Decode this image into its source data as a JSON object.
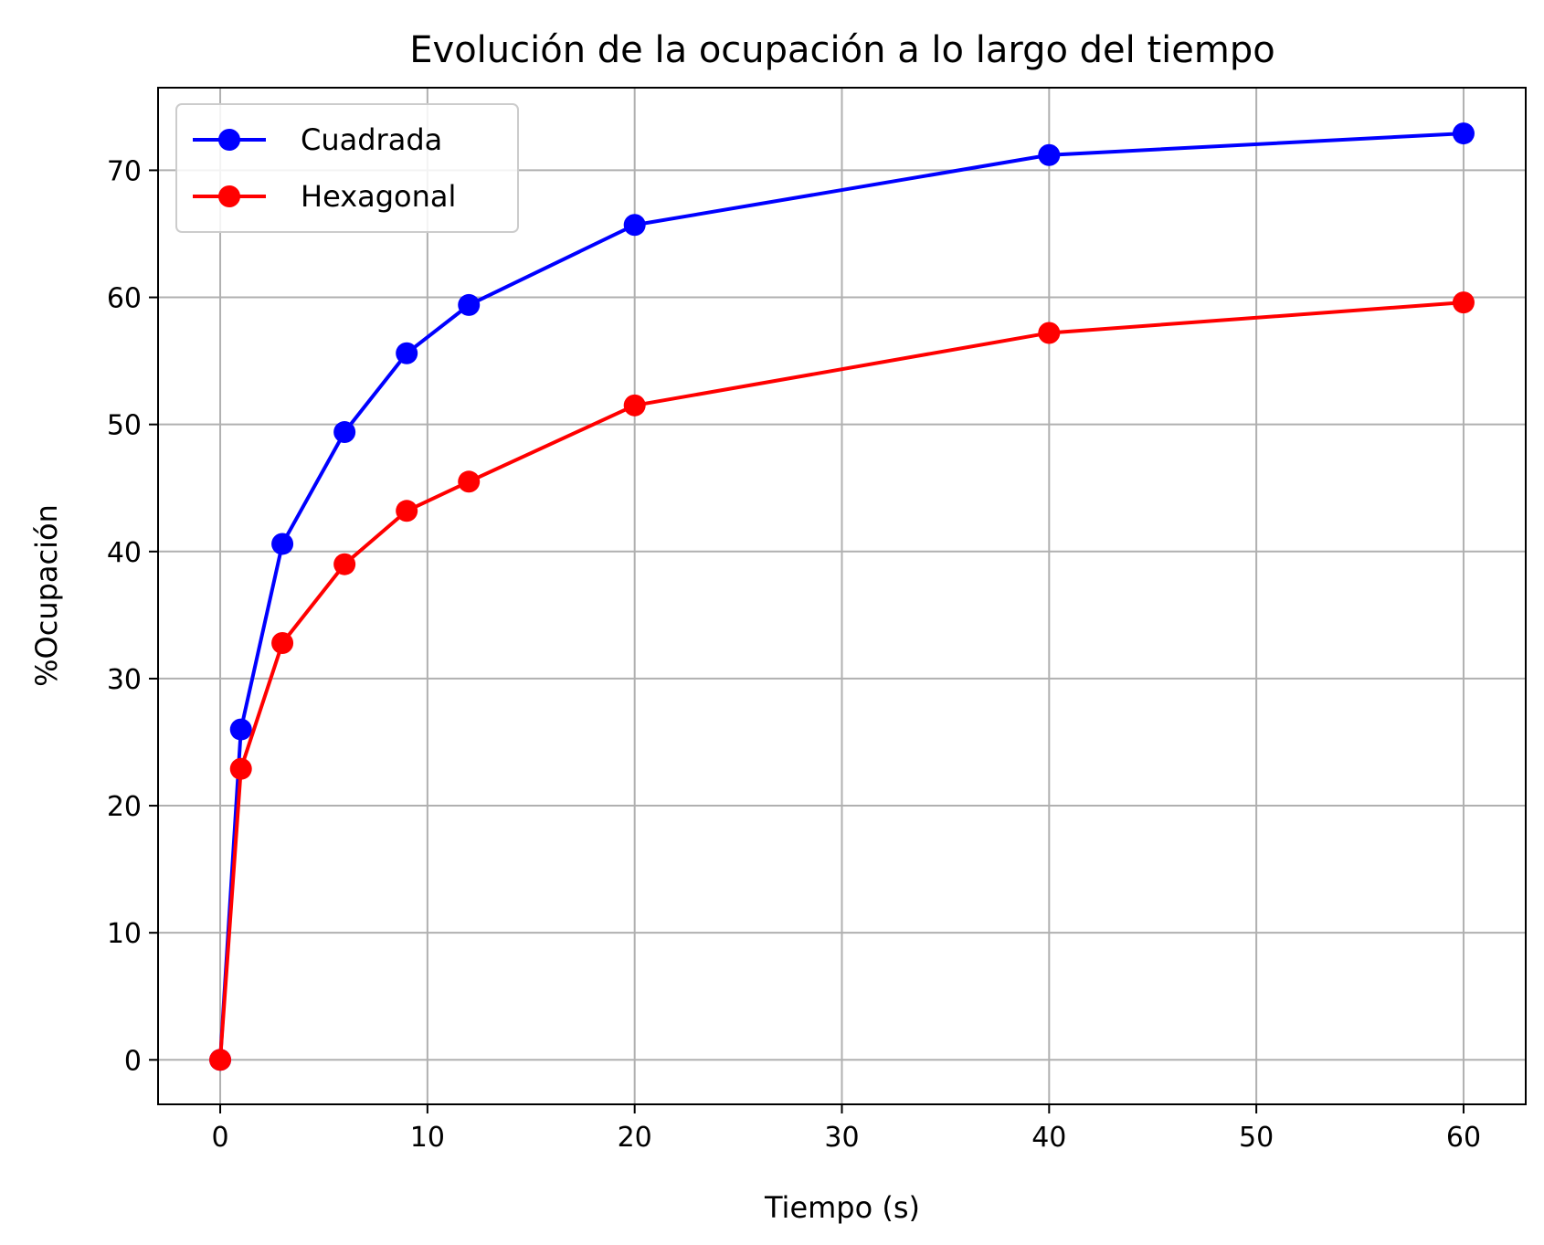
{
  "chart_data": {
    "type": "line",
    "title": "Evolución de la ocupación a lo largo del tiempo",
    "xlabel": "Tiempo (s)",
    "ylabel": "%Ocupación",
    "xlim": [
      -3,
      63
    ],
    "ylim": [
      -3.5,
      76.5
    ],
    "xticks": [
      0,
      10,
      20,
      30,
      40,
      50,
      60
    ],
    "yticks": [
      0,
      10,
      20,
      30,
      40,
      50,
      60,
      70
    ],
    "grid": true,
    "legend_position": "top-left",
    "series": [
      {
        "name": "Cuadrada",
        "color": "#0000ff",
        "marker": "circle",
        "x": [
          0,
          1,
          3,
          6,
          9,
          12,
          20,
          40,
          60
        ],
        "y": [
          0,
          26.0,
          40.6,
          49.4,
          55.6,
          59.4,
          65.7,
          71.2,
          72.9
        ]
      },
      {
        "name": "Hexagonal",
        "color": "#ff0000",
        "marker": "circle",
        "x": [
          0,
          1,
          3,
          6,
          9,
          12,
          20,
          40,
          60
        ],
        "y": [
          0,
          22.9,
          32.8,
          39.0,
          43.2,
          45.5,
          51.5,
          57.2,
          59.6
        ]
      }
    ]
  }
}
